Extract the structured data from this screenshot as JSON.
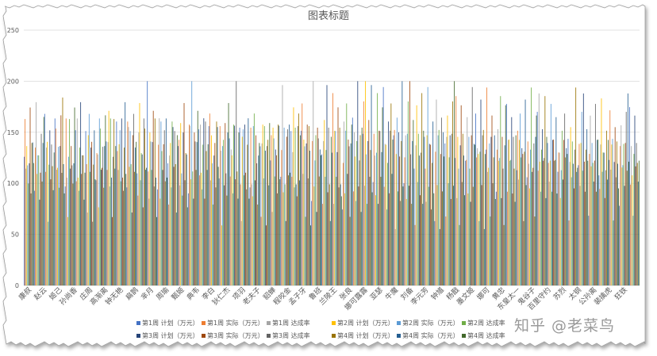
{
  "watermark": "知乎 @老菜鸟",
  "chart_data": {
    "type": "bar",
    "title": "图表标题",
    "ylim": [
      0,
      250
    ],
    "yticks": [
      0,
      50,
      100,
      150,
      200,
      250
    ],
    "grid": true,
    "legend_placement": "bottom",
    "category_labels": [
      "康叔",
      "赵云",
      "姬己",
      "孙尚香",
      "庄周",
      "高渐离",
      "钟无艳",
      "扁鹊",
      "芈月",
      "周瑜",
      "甄姬",
      "典韦",
      "李白",
      "狄仁杰",
      "项羽",
      "老夫子",
      "貂蝉",
      "程咬金",
      "孟子牙",
      "鲁班",
      "兰陵王",
      "张良",
      "娜可露露",
      "亚瑟",
      "牛魔",
      "刘备",
      "李元芳",
      "钟馗",
      "杨戬",
      "墨文姬",
      "娜可",
      "黄忠",
      "东皇太一",
      "鬼谷子",
      "百里守约",
      "苏烈",
      "太钢",
      "公孙离",
      "裴擒虎",
      "狂铁"
    ],
    "series": [
      {
        "name": "第1周 计划（万元）",
        "color": "#4472c4"
      },
      {
        "name": "第1周 实际（万元）",
        "color": "#ed7d31"
      },
      {
        "name": "第1周 达成率",
        "color": "#a5a5a5"
      },
      {
        "name": "第2周 计划（万元）",
        "color": "#ffc000"
      },
      {
        "name": "第2周 实际（万元）",
        "color": "#5b9bd5"
      },
      {
        "name": "第2周 达成率",
        "color": "#70ad47"
      },
      {
        "name": "第3周 计划（万元）",
        "color": "#264478"
      },
      {
        "name": "第3周 实际（万元）",
        "color": "#9e480e"
      },
      {
        "name": "第3周 达成率",
        "color": "#636363"
      },
      {
        "name": "第4周 计划（万元）",
        "color": "#997300"
      },
      {
        "name": "第4周 实际（万元）",
        "color": "#255e91"
      },
      {
        "name": "第4周 达成率",
        "color": "#43682b"
      }
    ],
    "value_pattern": [
      140,
      168,
      110,
      150,
      120,
      95,
      130,
      176,
      85,
      150,
      140,
      112,
      128,
      160,
      100,
      150,
      110,
      90,
      150,
      185,
      105,
      140,
      130,
      80,
      120,
      150,
      96,
      150,
      165,
      115,
      140,
      125,
      70,
      135,
      175,
      108,
      150,
      145,
      60,
      130,
      155,
      99,
      150,
      118,
      88,
      140,
      190,
      102,
      120,
      135,
      75,
      150,
      160,
      110,
      128,
      140,
      92,
      150,
      170,
      105,
      200,
      120,
      85,
      140,
      150,
      112,
      130,
      180,
      95,
      150,
      110,
      65
    ]
  }
}
